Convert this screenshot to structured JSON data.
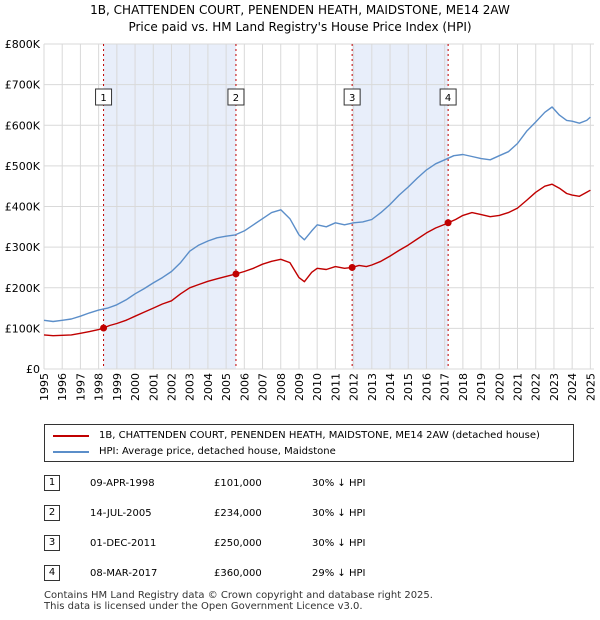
{
  "chart_data": {
    "type": "line",
    "title": [
      "1B, CHATTENDEN COURT, PENENDEN HEATH, MAIDSTONE, ME14 2AW",
      "Price paid vs. HM Land Registry's House Price Index (HPI)"
    ],
    "xlim": [
      1995,
      2025.2
    ],
    "ylim": [
      0,
      800000
    ],
    "x_ticks": [
      "1995",
      "1996",
      "1997",
      "1998",
      "1999",
      "2000",
      "2001",
      "2002",
      "2003",
      "2004",
      "2005",
      "2006",
      "2007",
      "2008",
      "2009",
      "2010",
      "2011",
      "2012",
      "2013",
      "2014",
      "2015",
      "2016",
      "2017",
      "2018",
      "2019",
      "2020",
      "2021",
      "2022",
      "2023",
      "2024",
      "2025"
    ],
    "y_ticks": [
      0,
      100000,
      200000,
      300000,
      400000,
      500000,
      600000,
      700000,
      800000
    ],
    "y_tick_labels": [
      "£0",
      "£100K",
      "£200K",
      "£300K",
      "£400K",
      "£500K",
      "£600K",
      "£700K",
      "£800K"
    ],
    "grid": true,
    "shaded_periods": [
      [
        1998.27,
        2005.54
      ],
      [
        2011.92,
        2017.19
      ]
    ],
    "series": [
      {
        "name": "1B, CHATTENDEN COURT, PENENDEN HEATH, MAIDSTONE, ME14 2AW (detached house)",
        "color": "#c00000",
        "x": [
          1995.0,
          1995.5,
          1996.0,
          1996.5,
          1997.0,
          1997.5,
          1998.0,
          1998.27,
          1998.6,
          1999.0,
          1999.5,
          2000.0,
          2000.5,
          2001.0,
          2001.5,
          2002.0,
          2002.5,
          2003.0,
          2003.5,
          2004.0,
          2004.5,
          2005.0,
          2005.54,
          2006.0,
          2006.5,
          2007.0,
          2007.5,
          2008.0,
          2008.5,
          2009.0,
          2009.3,
          2009.7,
          2010.0,
          2010.5,
          2011.0,
          2011.5,
          2011.92,
          2012.3,
          2012.7,
          2013.0,
          2013.5,
          2014.0,
          2014.5,
          2015.0,
          2015.5,
          2016.0,
          2016.5,
          2017.0,
          2017.19,
          2017.6,
          2018.0,
          2018.5,
          2019.0,
          2019.5,
          2020.0,
          2020.5,
          2021.0,
          2021.5,
          2022.0,
          2022.5,
          2022.9,
          2023.3,
          2023.7,
          2024.0,
          2024.4,
          2024.8,
          2025.0
        ],
        "values": [
          84000,
          82000,
          83000,
          84000,
          88000,
          92000,
          97000,
          101000,
          107000,
          112000,
          120000,
          130000,
          140000,
          150000,
          160000,
          168000,
          185000,
          200000,
          208000,
          216000,
          222000,
          228000,
          234000,
          240000,
          248000,
          258000,
          265000,
          270000,
          262000,
          225000,
          215000,
          238000,
          248000,
          245000,
          252000,
          248000,
          250000,
          255000,
          252000,
          256000,
          265000,
          278000,
          292000,
          305000,
          320000,
          335000,
          347000,
          356000,
          360000,
          368000,
          378000,
          385000,
          380000,
          375000,
          378000,
          385000,
          396000,
          415000,
          435000,
          450000,
          455000,
          445000,
          432000,
          428000,
          425000,
          435000,
          440000
        ]
      },
      {
        "name": "HPI: Average price, detached house, Maidstone",
        "color": "#5b8ec9",
        "x": [
          1995.0,
          1995.5,
          1996.0,
          1996.5,
          1997.0,
          1997.5,
          1998.0,
          1998.5,
          1999.0,
          1999.5,
          2000.0,
          2000.5,
          2001.0,
          2001.5,
          2002.0,
          2002.5,
          2003.0,
          2003.5,
          2004.0,
          2004.5,
          2005.0,
          2005.5,
          2006.0,
          2006.5,
          2007.0,
          2007.5,
          2008.0,
          2008.5,
          2009.0,
          2009.3,
          2009.7,
          2010.0,
          2010.5,
          2011.0,
          2011.5,
          2012.0,
          2012.5,
          2013.0,
          2013.5,
          2014.0,
          2014.5,
          2015.0,
          2015.5,
          2016.0,
          2016.5,
          2017.0,
          2017.5,
          2018.0,
          2018.5,
          2019.0,
          2019.5,
          2020.0,
          2020.5,
          2021.0,
          2021.5,
          2022.0,
          2022.5,
          2022.9,
          2023.3,
          2023.7,
          2024.0,
          2024.4,
          2024.8,
          2025.0
        ],
        "values": [
          120000,
          117000,
          120000,
          123000,
          130000,
          138000,
          145000,
          150000,
          158000,
          170000,
          185000,
          198000,
          212000,
          225000,
          240000,
          262000,
          290000,
          305000,
          315000,
          323000,
          327000,
          330000,
          340000,
          355000,
          370000,
          385000,
          392000,
          370000,
          330000,
          318000,
          340000,
          355000,
          350000,
          360000,
          355000,
          360000,
          362000,
          368000,
          385000,
          405000,
          428000,
          448000,
          470000,
          490000,
          505000,
          515000,
          525000,
          528000,
          523000,
          518000,
          515000,
          525000,
          535000,
          555000,
          585000,
          608000,
          632000,
          645000,
          625000,
          612000,
          610000,
          605000,
          612000,
          620000
        ]
      }
    ],
    "transactions": [
      {
        "num": "1",
        "date": "09-APR-1998",
        "price": "£101,000",
        "x": 1998.27,
        "value": 101000,
        "hpi": "30% ↓ HPI"
      },
      {
        "num": "2",
        "date": "14-JUL-2005",
        "price": "£234,000",
        "x": 2005.54,
        "value": 234000,
        "hpi": "30% ↓ HPI"
      },
      {
        "num": "3",
        "date": "01-DEC-2011",
        "price": "£250,000",
        "x": 2011.92,
        "value": 250000,
        "hpi": "30% ↓ HPI"
      },
      {
        "num": "4",
        "date": "08-MAR-2017",
        "price": "£360,000",
        "x": 2017.19,
        "value": 360000,
        "hpi": "29% ↓ HPI"
      }
    ],
    "footer": [
      "Contains HM Land Registry data © Crown copyright and database right 2025.",
      "This data is licensed under the Open Government Licence v3.0."
    ]
  }
}
